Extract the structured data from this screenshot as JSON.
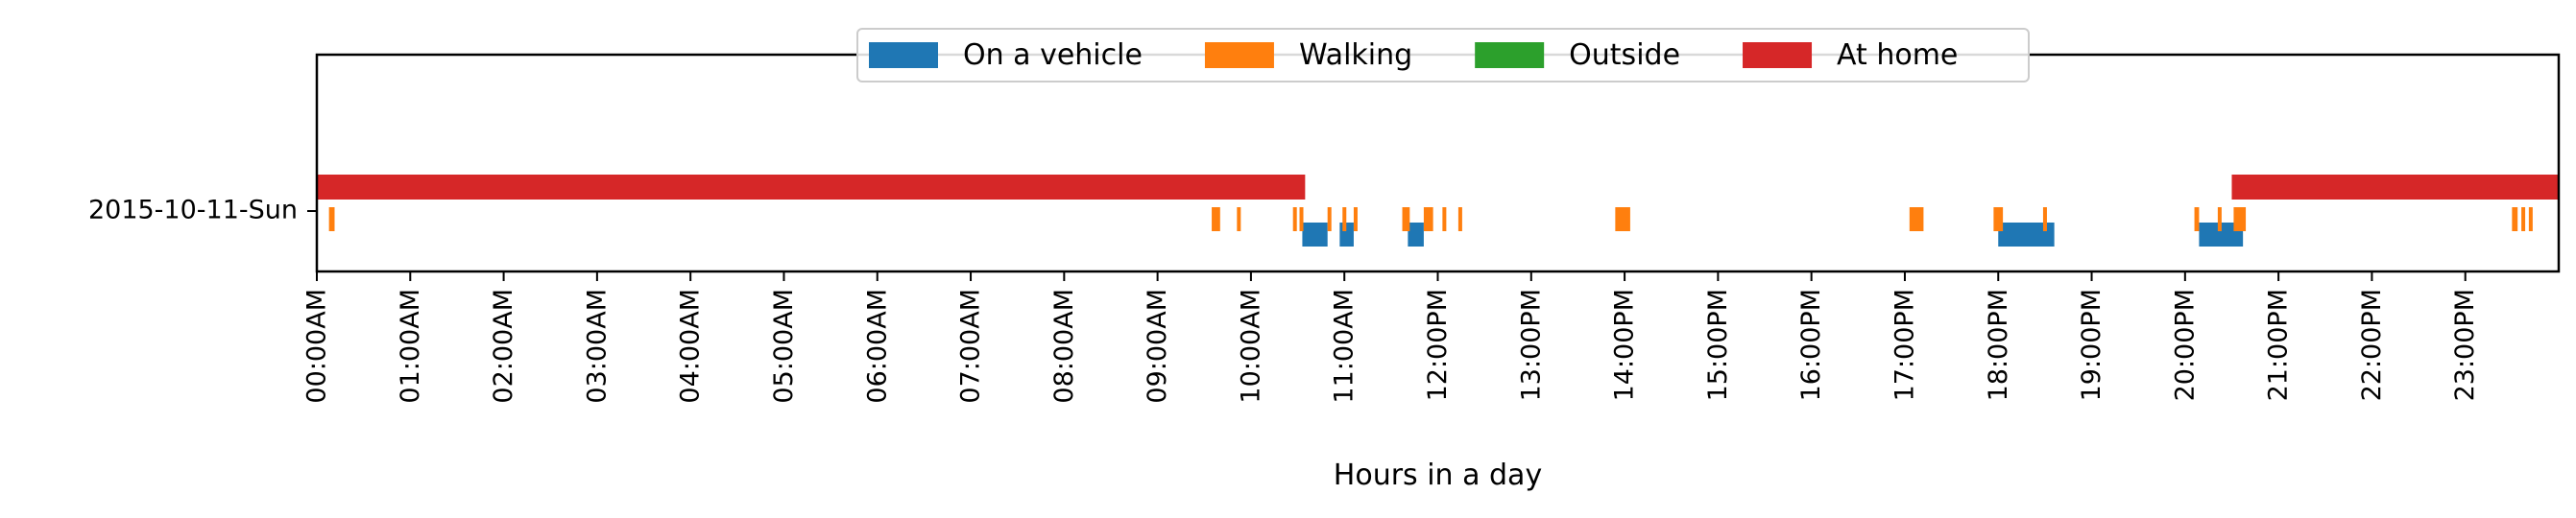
{
  "chart_data": {
    "type": "timeline",
    "xlabel": "Hours in a day",
    "xlim": [
      0,
      24
    ],
    "category": "2015-10-11-Sun",
    "xtick_labels": [
      "00:00AM",
      "01:00AM",
      "02:00AM",
      "03:00AM",
      "04:00AM",
      "05:00AM",
      "06:00AM",
      "07:00AM",
      "08:00AM",
      "09:00AM",
      "10:00AM",
      "11:00AM",
      "12:00PM",
      "13:00PM",
      "14:00PM",
      "15:00PM",
      "16:00PM",
      "17:00PM",
      "18:00PM",
      "19:00PM",
      "20:00PM",
      "21:00PM",
      "22:00PM",
      "23:00PM"
    ],
    "legend": {
      "placement": "top-center"
    },
    "series": [
      {
        "name": "On a vehicle",
        "color": "#1f77b4",
        "intervals": [
          [
            10.55,
            10.82
          ],
          [
            10.95,
            11.1
          ],
          [
            11.68,
            11.85
          ],
          [
            18.0,
            18.6
          ],
          [
            20.15,
            20.62
          ]
        ]
      },
      {
        "name": "Walking",
        "color": "#ff7f0e",
        "intervals": [
          [
            0.13,
            0.19
          ],
          [
            9.58,
            9.67
          ],
          [
            9.85,
            9.89
          ],
          [
            10.45,
            10.49
          ],
          [
            10.52,
            10.55
          ],
          [
            10.82,
            10.86
          ],
          [
            10.98,
            11.01
          ],
          [
            11.1,
            11.14
          ],
          [
            11.62,
            11.7
          ],
          [
            11.85,
            11.95
          ],
          [
            12.05,
            12.08
          ],
          [
            12.22,
            12.25
          ],
          [
            13.9,
            14.06
          ],
          [
            17.05,
            17.2
          ],
          [
            17.95,
            18.05
          ],
          [
            18.48,
            18.52
          ],
          [
            20.1,
            20.15
          ],
          [
            20.35,
            20.38
          ],
          [
            20.52,
            20.65
          ],
          [
            23.5,
            23.56
          ],
          [
            23.6,
            23.64
          ],
          [
            23.68,
            23.72
          ]
        ]
      },
      {
        "name": "Outside",
        "color": "#2ca02c",
        "intervals": []
      },
      {
        "name": "At home",
        "color": "#d62728",
        "intervals": [
          [
            0.0,
            10.58
          ],
          [
            20.5,
            24.0
          ]
        ]
      }
    ]
  }
}
